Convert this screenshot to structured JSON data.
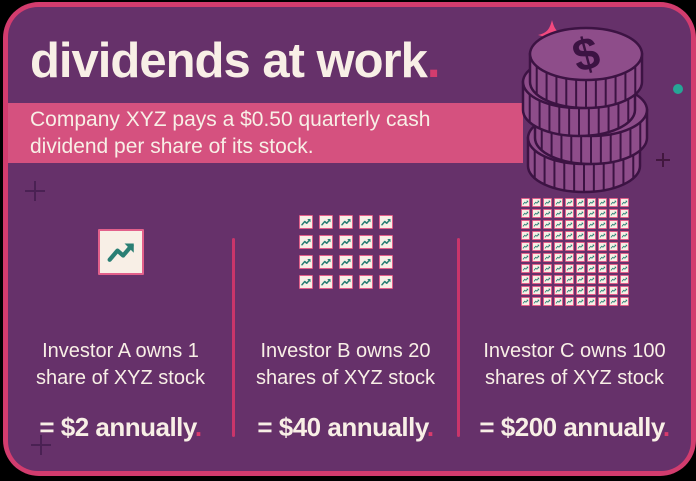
{
  "header": {
    "title": "dividends at work",
    "title_period": ".",
    "subtitle_lines": [
      "Company XYZ pays a $0.50 quarterly cash",
      "dividend per share of its stock."
    ]
  },
  "investors": [
    {
      "lines": [
        "Investor A owns 1",
        "share of XYZ stock"
      ],
      "payout": "= $2 annually",
      "payout_period": ".",
      "shares": 1,
      "grid_cols": 1,
      "icon_size": "large"
    },
    {
      "lines": [
        "Investor B owns 20",
        "shares of XYZ stock"
      ],
      "payout": "= $40 annually",
      "payout_period": ".",
      "shares": 20,
      "grid_cols": 5,
      "icon_size": "medium"
    },
    {
      "lines": [
        "Investor C owns 100",
        "shares of XYZ stock"
      ],
      "payout": "= $200 annually",
      "payout_period": ".",
      "shares": 100,
      "grid_cols": 10,
      "icon_size": "small"
    }
  ],
  "icons": {
    "stock_share": "trending-up-chart",
    "coin_stack": "stack-of-dollar-coins",
    "sparkle": "four-point-star",
    "dollar_glyph": "$",
    "decorations": [
      "plus",
      "plus",
      "plus",
      "teal-dot"
    ]
  },
  "colors": {
    "background": "#000000",
    "card_purple": "#66316a",
    "accent_pink": "#d23c6e",
    "banner_pink": "#d5517f",
    "cream": "#f8efe6",
    "teal": "#2a7f74",
    "teal_dot": "#26a596",
    "coin_fill": "#8e4d8a",
    "coin_outline": "#3c1343"
  }
}
